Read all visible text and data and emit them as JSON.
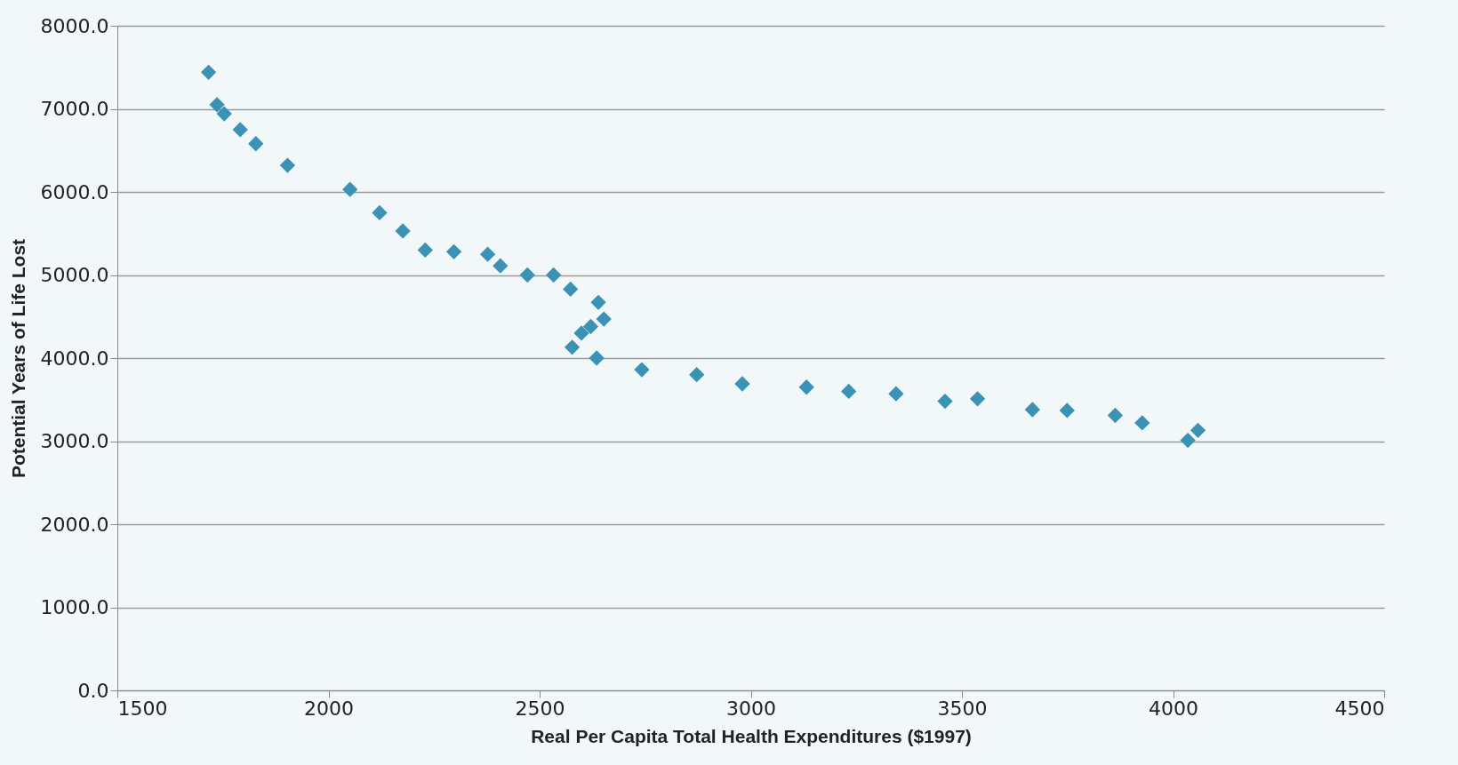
{
  "chart_data": {
    "type": "scatter",
    "xlabel": "Real Per Capita Total Health Expenditures ($1997)",
    "ylabel": "Potential Years of Life Lost",
    "x": [
      1716,
      1736,
      1753,
      1791,
      1828,
      1903,
      2051,
      2121,
      2176,
      2229,
      2297,
      2377,
      2407,
      2471,
      2533,
      2573,
      2639,
      2652,
      2621,
      2599,
      2577,
      2635,
      2742,
      2872,
      2980,
      3132,
      3232,
      3344,
      3460,
      3537,
      3667,
      3749,
      3863,
      3927,
      4035,
      4059
    ],
    "series": [
      {
        "color": "#3a93b5",
        "values": [
          7440,
          7050,
          6940,
          6750,
          6580,
          6320,
          6030,
          5750,
          5530,
          5300,
          5280,
          5250,
          5110,
          5000,
          5000,
          4830,
          4670,
          4470,
          4380,
          4300,
          4130,
          4000,
          3860,
          3800,
          3690,
          3650,
          3600,
          3570,
          3480,
          3510,
          3380,
          3370,
          3310,
          3220,
          3010,
          3130
        ]
      }
    ],
    "xlim": [
      1500,
      4500
    ],
    "xticks": [
      1500,
      2000,
      2500,
      3000,
      3500,
      4000,
      4500
    ],
    "ylim": [
      0,
      8000
    ],
    "yticks": [
      {
        "value": 0,
        "label": "0.0"
      },
      {
        "value": 1000,
        "label": "1000.0"
      },
      {
        "value": 2000,
        "label": "2000.0"
      },
      {
        "value": 3000,
        "label": "3000.0"
      },
      {
        "value": 4000,
        "label": "4000.0"
      },
      {
        "value": 5000,
        "label": "5000.0"
      },
      {
        "value": 6000,
        "label": "6000.0"
      },
      {
        "value": 7000,
        "label": "7000.0"
      },
      {
        "value": 8000,
        "label": "8000.0"
      }
    ],
    "grid": "y",
    "marker": "diamond"
  }
}
